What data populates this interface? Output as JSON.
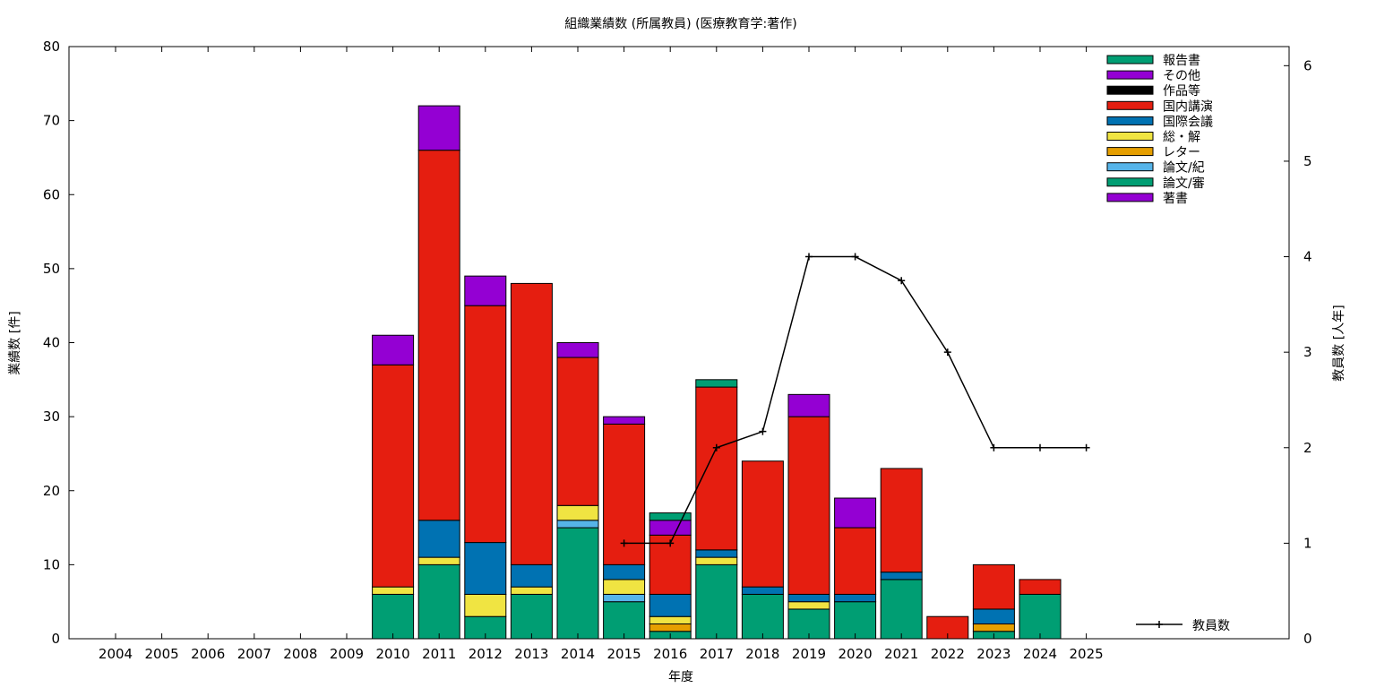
{
  "chart_data": {
    "type": "bar",
    "stacked": true,
    "title": "組織業績数 (所属教員) (医療教育学:著作)",
    "xlabel": "年度",
    "ylabel": "業績数 [件]",
    "y2label": "教員数 [人年]",
    "ylim": [
      0,
      80
    ],
    "y2lim": [
      0,
      6.2
    ],
    "yticks": [
      0,
      10,
      20,
      30,
      40,
      50,
      60,
      70,
      80
    ],
    "y2ticks": [
      0,
      1,
      2,
      3,
      4,
      5,
      6
    ],
    "grid": false,
    "legend_position": "top-right",
    "categories": [
      "2004",
      "2005",
      "2006",
      "2007",
      "2008",
      "2009",
      "2010",
      "2011",
      "2012",
      "2013",
      "2014",
      "2015",
      "2016",
      "2017",
      "2018",
      "2019",
      "2020",
      "2021",
      "2022",
      "2023",
      "2024",
      "2025"
    ],
    "series": [
      {
        "name": "論文/審",
        "color": "#009e73",
        "values": [
          0,
          0,
          0,
          0,
          0,
          0,
          6,
          10,
          3,
          6,
          15,
          5,
          1,
          10,
          6,
          4,
          5,
          8,
          0,
          1,
          6,
          0
        ]
      },
      {
        "name": "論文/紀",
        "color": "#56b4e9",
        "values": [
          0,
          0,
          0,
          0,
          0,
          0,
          0,
          0,
          0,
          0,
          1,
          1,
          0,
          0,
          0,
          0,
          0,
          0,
          0,
          0,
          0,
          0
        ]
      },
      {
        "name": "レター",
        "color": "#e69f00",
        "values": [
          0,
          0,
          0,
          0,
          0,
          0,
          0,
          0,
          0,
          0,
          0,
          0,
          1,
          0,
          0,
          0,
          0,
          0,
          0,
          1,
          0,
          0
        ]
      },
      {
        "name": "総・解",
        "color": "#f0e442",
        "values": [
          0,
          0,
          0,
          0,
          0,
          0,
          1,
          1,
          3,
          1,
          2,
          2,
          1,
          1,
          0,
          1,
          0,
          0,
          0,
          0,
          0,
          0
        ]
      },
      {
        "name": "国際会議",
        "color": "#0072b2",
        "values": [
          0,
          0,
          0,
          0,
          0,
          0,
          0,
          5,
          7,
          3,
          0,
          2,
          3,
          1,
          1,
          1,
          1,
          1,
          0,
          2,
          0,
          0
        ]
      },
      {
        "name": "国内講演",
        "color": "#e51e10",
        "values": [
          0,
          0,
          0,
          0,
          0,
          0,
          30,
          50,
          32,
          38,
          20,
          19,
          8,
          22,
          17,
          24,
          9,
          14,
          3,
          6,
          2,
          0
        ]
      },
      {
        "name": "作品等",
        "color": "#000000",
        "values": [
          0,
          0,
          0,
          0,
          0,
          0,
          0,
          0,
          0,
          0,
          0,
          0,
          0,
          0,
          0,
          0,
          0,
          0,
          0,
          0,
          0,
          0
        ]
      },
      {
        "name": "その他",
        "color": "#9400d3",
        "values": [
          0,
          0,
          0,
          0,
          0,
          0,
          4,
          6,
          4,
          0,
          0,
          1,
          2,
          0,
          0,
          3,
          4,
          0,
          0,
          0,
          0,
          0
        ]
      },
      {
        "name": "報告書",
        "color": "#009e73",
        "values": [
          0,
          0,
          0,
          0,
          0,
          0,
          0,
          0,
          0,
          0,
          0,
          0,
          1,
          1,
          0,
          0,
          0,
          0,
          0,
          0,
          0,
          0
        ]
      },
      {
        "name": "著書",
        "color": "#9400d3",
        "values": [
          0,
          0,
          0,
          0,
          0,
          0,
          0,
          0,
          0,
          0,
          2,
          0,
          0,
          0,
          0,
          0,
          0,
          0,
          0,
          0,
          0,
          0
        ]
      }
    ],
    "legend_order": [
      "報告書",
      "その他",
      "作品等",
      "国内講演",
      "国際会議",
      "総・解",
      "レター",
      "論文/紀",
      "論文/審",
      "著書"
    ],
    "line": {
      "name": "教員数",
      "axis": "y2",
      "color": "#000000",
      "x": [
        "2015",
        "2016",
        "2017",
        "2018",
        "2019",
        "2020",
        "2021",
        "2022",
        "2023",
        "2024",
        "2025"
      ],
      "values": [
        1,
        1,
        2,
        2.17,
        4,
        4,
        3.75,
        3,
        2,
        2,
        2
      ]
    }
  }
}
